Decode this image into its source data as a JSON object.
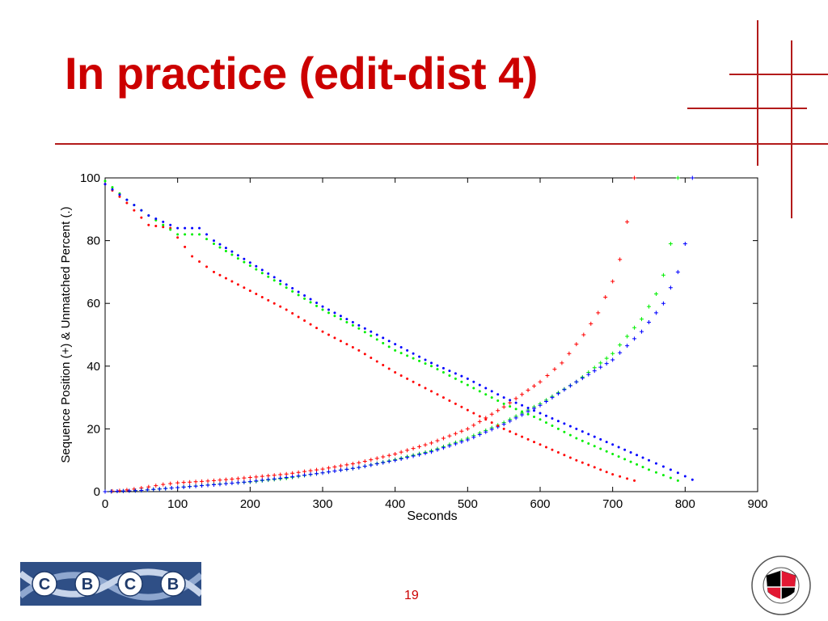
{
  "slide": {
    "title": "In practice (edit-dist 4)",
    "page_number": "19"
  },
  "logos": {
    "cbcb_letters": [
      "C",
      "B",
      "C",
      "B"
    ],
    "umd_seal_text": "UNIVERSITY OF MARYLAND 1856"
  },
  "colors": {
    "title": "#cc0000",
    "accent_rule": "#b31b1b",
    "series_red": "#ff0000",
    "series_green": "#00ee00",
    "series_blue": "#0000ff"
  },
  "chart_data": {
    "type": "scatter",
    "title": "",
    "xlabel": "Seconds",
    "ylabel": "Sequence Position (+) & Unmatched Percent (.)",
    "xlim": [
      0,
      900
    ],
    "ylim": [
      0,
      100
    ],
    "xticks": [
      0,
      100,
      200,
      300,
      400,
      500,
      600,
      700,
      800,
      900
    ],
    "yticks": [
      0,
      20,
      40,
      60,
      80,
      100
    ],
    "grid": false,
    "legend": "none",
    "series": [
      {
        "color": "#ff0000",
        "marker": "+",
        "points": [
          [
            0,
            0
          ],
          [
            20,
            0.3
          ],
          [
            40,
            0.8
          ],
          [
            60,
            1.5
          ],
          [
            80,
            2.3
          ],
          [
            100,
            2.8
          ],
          [
            150,
            3.5
          ],
          [
            200,
            4.5
          ],
          [
            250,
            5.6
          ],
          [
            300,
            7.2
          ],
          [
            350,
            9.2
          ],
          [
            400,
            12
          ],
          [
            450,
            15.5
          ],
          [
            500,
            20
          ],
          [
            550,
            27
          ],
          [
            600,
            35
          ],
          [
            630,
            41
          ],
          [
            660,
            50
          ],
          [
            680,
            57
          ],
          [
            700,
            67
          ],
          [
            710,
            74
          ],
          [
            720,
            86
          ],
          [
            730,
            100
          ]
        ]
      },
      {
        "color": "#00ee00",
        "marker": "+",
        "points": [
          [
            0,
            0
          ],
          [
            50,
            0.4
          ],
          [
            100,
            1.3
          ],
          [
            150,
            2.3
          ],
          [
            200,
            3.1
          ],
          [
            250,
            4.3
          ],
          [
            300,
            6
          ],
          [
            350,
            7.7
          ],
          [
            400,
            10.2
          ],
          [
            450,
            13
          ],
          [
            500,
            17
          ],
          [
            550,
            22
          ],
          [
            600,
            28
          ],
          [
            650,
            35
          ],
          [
            700,
            44
          ],
          [
            740,
            55
          ],
          [
            760,
            63
          ],
          [
            770,
            69
          ],
          [
            780,
            79
          ],
          [
            790,
            100
          ]
        ]
      },
      {
        "color": "#0000ff",
        "marker": "+",
        "points": [
          [
            0,
            0
          ],
          [
            50,
            0.4
          ],
          [
            100,
            1.3
          ],
          [
            150,
            2.2
          ],
          [
            200,
            3.2
          ],
          [
            250,
            4.5
          ],
          [
            300,
            6
          ],
          [
            350,
            7.7
          ],
          [
            400,
            10
          ],
          [
            450,
            12.7
          ],
          [
            500,
            16.5
          ],
          [
            550,
            21.5
          ],
          [
            600,
            27.5
          ],
          [
            650,
            35
          ],
          [
            700,
            42
          ],
          [
            740,
            51
          ],
          [
            770,
            60
          ],
          [
            790,
            70
          ],
          [
            800,
            79
          ],
          [
            810,
            100
          ]
        ]
      },
      {
        "color": "#ff0000",
        "marker": ".",
        "points": [
          [
            0,
            98
          ],
          [
            30,
            92
          ],
          [
            60,
            85
          ],
          [
            90,
            84
          ],
          [
            120,
            75
          ],
          [
            150,
            70
          ],
          [
            200,
            64
          ],
          [
            250,
            58
          ],
          [
            300,
            51
          ],
          [
            350,
            45
          ],
          [
            400,
            38
          ],
          [
            450,
            32
          ],
          [
            500,
            26
          ],
          [
            550,
            20
          ],
          [
            600,
            15
          ],
          [
            650,
            10
          ],
          [
            700,
            5.5
          ],
          [
            730,
            3.5
          ]
        ]
      },
      {
        "color": "#00ee00",
        "marker": ".",
        "points": [
          [
            0,
            99
          ],
          [
            30,
            93
          ],
          [
            60,
            88
          ],
          [
            80,
            85
          ],
          [
            100,
            82
          ],
          [
            130,
            82
          ],
          [
            150,
            79
          ],
          [
            200,
            72
          ],
          [
            250,
            65
          ],
          [
            300,
            58
          ],
          [
            350,
            52
          ],
          [
            400,
            45
          ],
          [
            450,
            40
          ],
          [
            500,
            34
          ],
          [
            550,
            28
          ],
          [
            600,
            23
          ],
          [
            650,
            17
          ],
          [
            700,
            12
          ],
          [
            750,
            7
          ],
          [
            790,
            3.5
          ]
        ]
      },
      {
        "color": "#0000ff",
        "marker": ".",
        "points": [
          [
            0,
            98
          ],
          [
            30,
            93
          ],
          [
            60,
            88
          ],
          [
            80,
            86
          ],
          [
            100,
            84
          ],
          [
            130,
            84
          ],
          [
            150,
            80
          ],
          [
            200,
            73
          ],
          [
            250,
            66
          ],
          [
            300,
            59
          ],
          [
            350,
            53
          ],
          [
            400,
            47
          ],
          [
            450,
            41
          ],
          [
            500,
            36
          ],
          [
            550,
            30
          ],
          [
            600,
            25
          ],
          [
            650,
            20
          ],
          [
            700,
            15
          ],
          [
            750,
            10
          ],
          [
            790,
            6
          ],
          [
            810,
            3.8
          ]
        ]
      }
    ]
  }
}
